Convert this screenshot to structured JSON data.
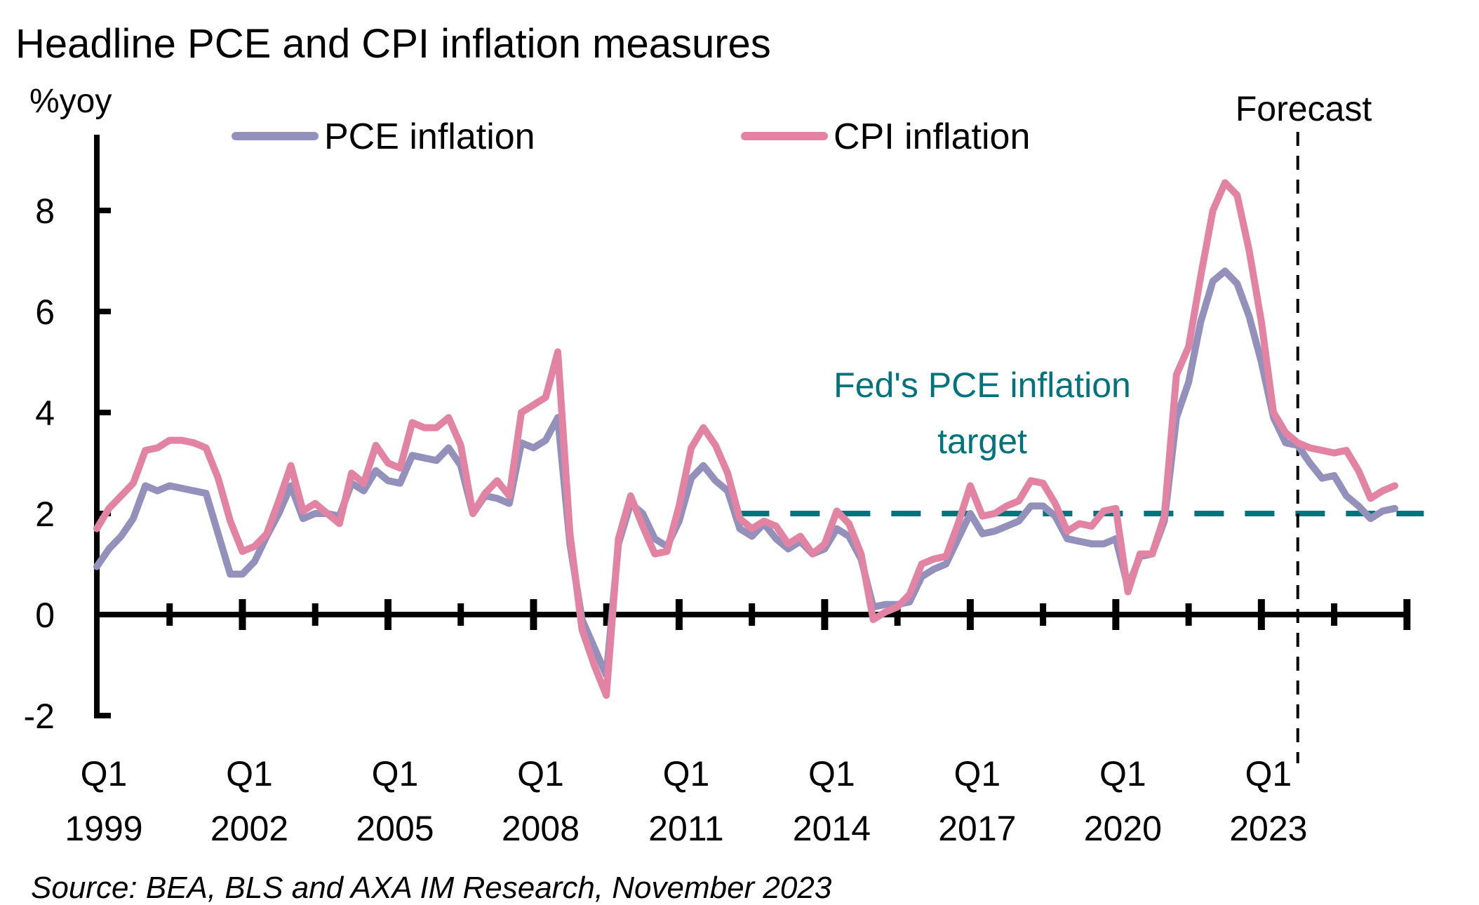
{
  "chart_data": {
    "type": "line",
    "title": "Headline PCE and CPI inflation measures",
    "ylabel": "%yoy",
    "xlabel": "",
    "ylim": [
      -2,
      9
    ],
    "yticks": [
      -2,
      0,
      2,
      4,
      6,
      8
    ],
    "ytick_labels": [
      "-2",
      "0",
      "2",
      "4",
      "6",
      "8"
    ],
    "grid": false,
    "legend_position": "top",
    "x_start": "1999 Q1",
    "x_end": "2026 Q1",
    "x_frequency": "quarterly",
    "xtick_labels": [
      {
        "q": "Q1",
        "year": "1999"
      },
      {
        "q": "Q1",
        "year": "2002"
      },
      {
        "q": "Q1",
        "year": "2005"
      },
      {
        "q": "Q1",
        "year": "2008"
      },
      {
        "q": "Q1",
        "year": "2011"
      },
      {
        "q": "Q1",
        "year": "2014"
      },
      {
        "q": "Q1",
        "year": "2017"
      },
      {
        "q": "Q1",
        "year": "2020"
      },
      {
        "q": "Q1",
        "year": "2023"
      }
    ],
    "series": [
      {
        "name": "PCE inflation",
        "color": "#9391bc",
        "values": [
          0.95,
          1.3,
          1.55,
          1.9,
          2.55,
          2.45,
          2.55,
          2.5,
          2.45,
          2.4,
          1.6,
          0.8,
          0.8,
          1.05,
          1.55,
          2.0,
          2.55,
          1.9,
          2.0,
          2.0,
          1.95,
          2.6,
          2.45,
          2.85,
          2.65,
          2.6,
          3.15,
          3.1,
          3.05,
          3.3,
          2.95,
          2.0,
          2.35,
          2.3,
          2.2,
          3.4,
          3.3,
          3.45,
          3.9,
          1.4,
          -0.1,
          -0.65,
          -1.2,
          1.4,
          2.2,
          2.0,
          1.5,
          1.35,
          1.85,
          2.7,
          2.95,
          2.65,
          2.45,
          1.7,
          1.55,
          1.8,
          1.5,
          1.3,
          1.45,
          1.2,
          1.3,
          1.7,
          1.55,
          1.1,
          0.15,
          0.2,
          0.2,
          0.25,
          0.75,
          0.9,
          1.0,
          1.5,
          2.0,
          1.6,
          1.65,
          1.75,
          1.85,
          2.15,
          2.15,
          1.95,
          1.5,
          1.45,
          1.4,
          1.4,
          1.5,
          0.55,
          1.15,
          1.2,
          1.85,
          3.9,
          4.6,
          5.8,
          6.6,
          6.8,
          6.55,
          5.9,
          5.0,
          3.9,
          3.4,
          3.35,
          3.0,
          2.7,
          2.75,
          2.35,
          2.15,
          1.9,
          2.05,
          2.1
        ]
      },
      {
        "name": "CPI inflation",
        "color": "#e383a3",
        "values": [
          1.7,
          2.1,
          2.35,
          2.6,
          3.25,
          3.3,
          3.45,
          3.45,
          3.4,
          3.3,
          2.7,
          1.85,
          1.25,
          1.35,
          1.6,
          2.25,
          2.95,
          2.05,
          2.2,
          2.0,
          1.8,
          2.8,
          2.6,
          3.35,
          3.0,
          2.9,
          3.8,
          3.7,
          3.7,
          3.9,
          3.35,
          2.0,
          2.4,
          2.65,
          2.35,
          4.0,
          4.15,
          4.3,
          5.2,
          1.6,
          -0.3,
          -1.0,
          -1.6,
          1.5,
          2.35,
          1.75,
          1.2,
          1.25,
          2.15,
          3.3,
          3.7,
          3.35,
          2.8,
          1.9,
          1.7,
          1.85,
          1.75,
          1.4,
          1.55,
          1.2,
          1.4,
          2.05,
          1.8,
          1.2,
          -0.1,
          0.05,
          0.15,
          0.4,
          1.0,
          1.1,
          1.15,
          1.8,
          2.55,
          1.95,
          2.0,
          2.15,
          2.25,
          2.65,
          2.6,
          2.2,
          1.65,
          1.8,
          1.75,
          2.05,
          2.1,
          0.45,
          1.2,
          1.2,
          1.95,
          4.75,
          5.3,
          6.7,
          8.0,
          8.55,
          8.3,
          7.2,
          5.8,
          4.0,
          3.6,
          3.4,
          3.3,
          3.25,
          3.2,
          3.25,
          2.85,
          2.3,
          2.45,
          2.55
        ]
      }
    ],
    "reference_line": {
      "label": "Fed's PCE inflation target",
      "label_lines": [
        "Fed's PCE inflation",
        "target"
      ],
      "value": 2,
      "start": "2012 Q2",
      "color": "#00737c",
      "style": "dashed"
    },
    "forecast_marker": {
      "label": "Forecast",
      "position": "2023 Q4",
      "style": "dashed"
    },
    "source": "Source: BEA, BLS and AXA IM Research, November 2023"
  }
}
